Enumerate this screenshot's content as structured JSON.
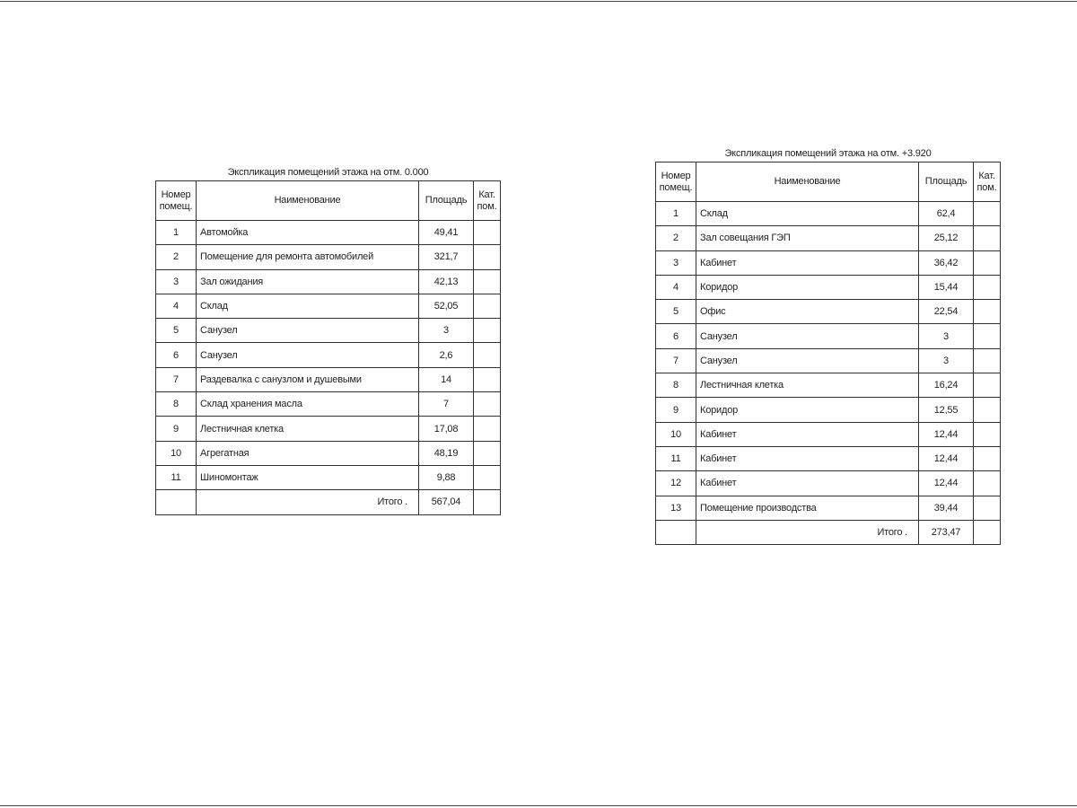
{
  "headers": {
    "number": "Номер помещ.",
    "name": "Наименование",
    "area": "Площадь",
    "category": "Кат. пом."
  },
  "tables": [
    {
      "title": "Экспликация помещений этажа на отм. 0.000",
      "rows": [
        {
          "num": "1",
          "name": "Автомойка",
          "area": "49,41",
          "cat": ""
        },
        {
          "num": "2",
          "name": "Помещение для ремонта автомобилей",
          "area": "321,7",
          "cat": ""
        },
        {
          "num": "3",
          "name": "Зал ожидания",
          "area": "42,13",
          "cat": ""
        },
        {
          "num": "4",
          "name": "Склад",
          "area": "52,05",
          "cat": ""
        },
        {
          "num": "5",
          "name": "Санузел",
          "area": "3",
          "cat": ""
        },
        {
          "num": "6",
          "name": "Санузел",
          "area": "2,6",
          "cat": ""
        },
        {
          "num": "7",
          "name": "Раздевалка с санузлом и душевыми",
          "area": "14",
          "cat": ""
        },
        {
          "num": "8",
          "name": "Склад хранения масла",
          "area": "7",
          "cat": ""
        },
        {
          "num": "9",
          "name": "Лестничная клетка",
          "area": "17,08",
          "cat": ""
        },
        {
          "num": "10",
          "name": "Агрегатная",
          "area": "48,19",
          "cat": ""
        },
        {
          "num": "11",
          "name": "Шиномонтаж",
          "area": "9,88",
          "cat": ""
        }
      ],
      "total_label": "Итого .",
      "total": "567,04"
    },
    {
      "title": "Экспликация помещений этажа на отм. +3.920",
      "rows": [
        {
          "num": "1",
          "name": "Склад",
          "area": "62,4",
          "cat": ""
        },
        {
          "num": "2",
          "name": "Зал совещания ГЭП",
          "area": "25,12",
          "cat": ""
        },
        {
          "num": "3",
          "name": "Кабинет",
          "area": "36,42",
          "cat": ""
        },
        {
          "num": "4",
          "name": "Коридор",
          "area": "15,44",
          "cat": ""
        },
        {
          "num": "5",
          "name": "Офис",
          "area": "22,54",
          "cat": ""
        },
        {
          "num": "6",
          "name": "Санузел",
          "area": "3",
          "cat": ""
        },
        {
          "num": "7",
          "name": "Санузел",
          "area": "3",
          "cat": ""
        },
        {
          "num": "8",
          "name": "Лестничная клетка",
          "area": "16,24",
          "cat": ""
        },
        {
          "num": "9",
          "name": "Коридор",
          "area": "12,55",
          "cat": ""
        },
        {
          "num": "10",
          "name": "Кабинет",
          "area": "12,44",
          "cat": ""
        },
        {
          "num": "11",
          "name": "Кабинет",
          "area": "12,44",
          "cat": ""
        },
        {
          "num": "12",
          "name": "Кабинет",
          "area": "12,44",
          "cat": ""
        },
        {
          "num": "13",
          "name": "Помещение производства",
          "area": "39,44",
          "cat": ""
        }
      ],
      "total_label": "Итого .",
      "total": "273,47"
    }
  ]
}
